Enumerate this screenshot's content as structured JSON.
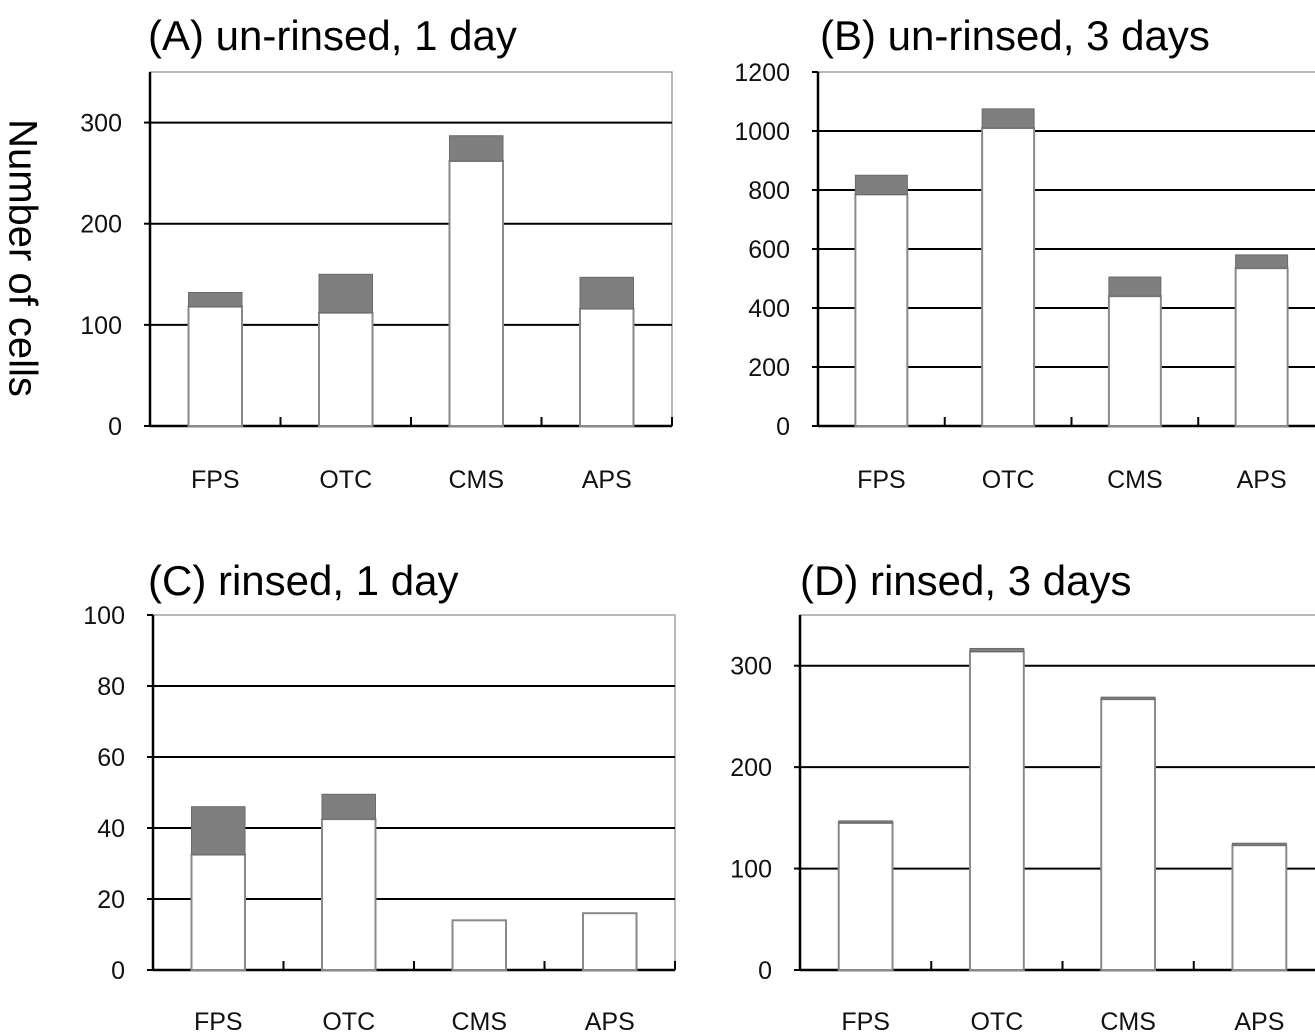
{
  "ylabel": "Number of cells",
  "chart_data": [
    {
      "type": "bar",
      "title": "(A) un-rinsed, 1 day",
      "ylabel": "Number of cells",
      "categories": [
        "FPS",
        "OTC",
        "CMS",
        "APS"
      ],
      "series": [
        {
          "values": [
            118,
            112,
            262,
            116
          ],
          "color": "#ffffff"
        },
        {
          "values": [
            14,
            38,
            25,
            31
          ],
          "color": "#7f7f7f"
        }
      ],
      "ylim": [
        0,
        350
      ],
      "yticks": [
        0,
        100,
        200,
        300
      ],
      "grid": true
    },
    {
      "type": "bar",
      "title": "(B) un-rinsed, 3 days",
      "ylabel": "",
      "categories": [
        "FPS",
        "OTC",
        "CMS",
        "APS"
      ],
      "series": [
        {
          "values": [
            785,
            1010,
            440,
            535
          ],
          "color": "#ffffff"
        },
        {
          "values": [
            65,
            65,
            65,
            45
          ],
          "color": "#7f7f7f"
        }
      ],
      "ylim": [
        0,
        1200
      ],
      "yticks": [
        0,
        200,
        400,
        600,
        800,
        1000,
        1200
      ],
      "grid": true
    },
    {
      "type": "bar",
      "title": "(C) rinsed, 1 day",
      "ylabel": "",
      "categories": [
        "FPS",
        "OTC",
        "CMS",
        "APS"
      ],
      "series": [
        {
          "values": [
            32.5,
            42.5,
            14,
            16
          ],
          "color": "#ffffff"
        },
        {
          "values": [
            13.5,
            7,
            0,
            0
          ],
          "color": "#7f7f7f"
        }
      ],
      "ylim": [
        0,
        100
      ],
      "yticks": [
        0,
        20,
        40,
        60,
        80,
        100
      ],
      "grid": true
    },
    {
      "type": "bar",
      "title": "(D) rinsed, 3 days",
      "ylabel": "",
      "categories": [
        "FPS",
        "OTC",
        "CMS",
        "APS"
      ],
      "series": [
        {
          "values": [
            145,
            314,
            267,
            123
          ],
          "color": "#ffffff"
        },
        {
          "values": [
            2,
            3,
            2,
            2
          ],
          "color": "#7f7f7f"
        }
      ],
      "ylim": [
        0,
        350
      ],
      "yticks": [
        0,
        100,
        200,
        300
      ],
      "grid": true
    }
  ]
}
